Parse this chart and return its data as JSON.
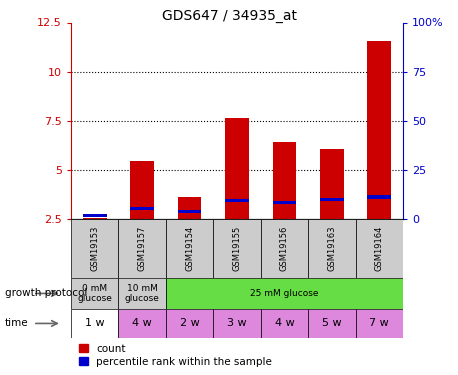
{
  "title": "GDS647 / 34935_at",
  "samples": [
    "GSM19153",
    "GSM19157",
    "GSM19154",
    "GSM19155",
    "GSM19156",
    "GSM19163",
    "GSM19164"
  ],
  "count_values": [
    2.55,
    5.45,
    3.65,
    7.65,
    6.45,
    6.05,
    11.55
  ],
  "percentile_values": [
    2.7,
    3.05,
    2.9,
    3.45,
    3.35,
    3.5,
    3.65
  ],
  "left_ylim": [
    2.5,
    12.5
  ],
  "right_ylim": [
    0,
    100
  ],
  "left_yticks": [
    2.5,
    5.0,
    7.5,
    10.0,
    12.5
  ],
  "right_yticks": [
    0,
    25,
    50,
    75,
    100
  ],
  "left_yticklabels": [
    "2.5",
    "5",
    "7.5",
    "10",
    "12.5"
  ],
  "right_yticklabels": [
    "0",
    "25",
    "50",
    "75",
    "100%"
  ],
  "left_tick_color": "#cc0000",
  "right_tick_color": "#0000cc",
  "bar_width": 0.5,
  "count_color": "#cc0000",
  "percentile_color": "#0000cc",
  "growth_protocol_label": "growth protocol",
  "time_label": "time",
  "growth_groups": [
    {
      "label": "0 mM\nglucose",
      "start": 0,
      "end": 1,
      "color": "#cccccc"
    },
    {
      "label": "10 mM\nglucose",
      "start": 1,
      "end": 2,
      "color": "#cccccc"
    },
    {
      "label": "25 mM glucose",
      "start": 2,
      "end": 7,
      "color": "#66dd44"
    }
  ],
  "time_labels": [
    "1 w",
    "4 w",
    "2 w",
    "3 w",
    "4 w",
    "5 w",
    "7 w"
  ],
  "time_colors": [
    "#ffffff",
    "#dd88dd",
    "#dd88dd",
    "#dd88dd",
    "#dd88dd",
    "#dd88dd",
    "#dd88dd"
  ],
  "sample_bg_color": "#cccccc",
  "legend_count_label": "count",
  "legend_percentile_label": "percentile rank within the sample",
  "dotted_lines": [
    5.0,
    7.5,
    10.0
  ],
  "perc_bar_height": 0.18
}
